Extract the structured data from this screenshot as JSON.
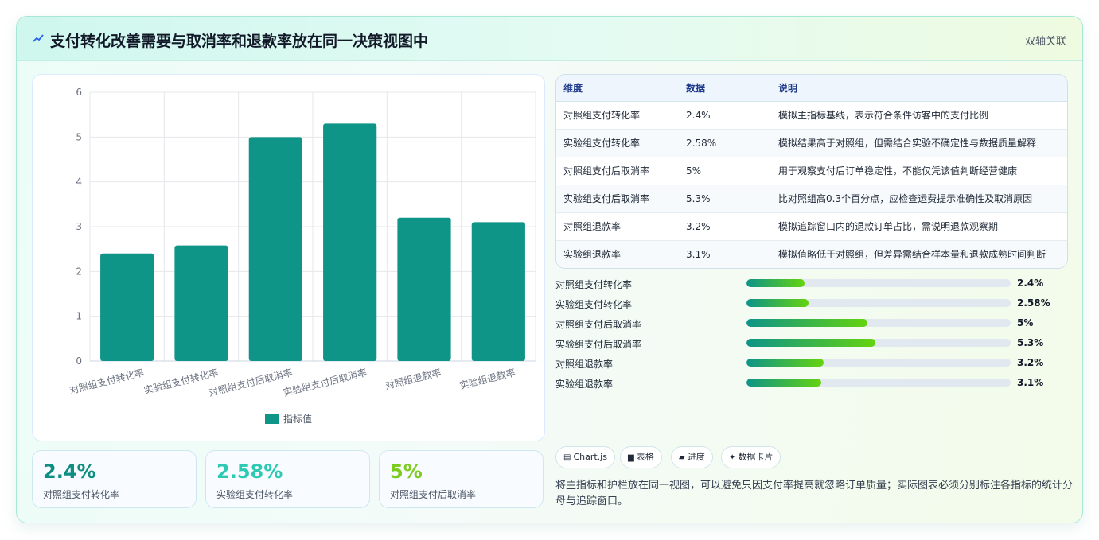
{
  "header": {
    "title": "支付转化改善需要与取消率和退款率放在同一决策视图中",
    "tag": "双轴关联",
    "icon": "trend-line-icon"
  },
  "chart_data": {
    "type": "bar",
    "categories": [
      "对照组支付转化率",
      "实验组支付转化率",
      "对照组支付后取消率",
      "实验组支付后取消率",
      "对照组退款率",
      "实验组退款率"
    ],
    "series": [
      {
        "name": "指标值",
        "values": [
          2.4,
          2.58,
          5,
          5.3,
          3.2,
          3.1
        ],
        "color": "#0f9488"
      }
    ],
    "ylim": [
      0,
      6
    ],
    "yticks": [
      "0",
      "1",
      "2",
      "3",
      "4",
      "5",
      "6"
    ],
    "grid": true,
    "legend": "bottom"
  },
  "metrics": [
    {
      "value": "2.4%",
      "label": "对照组支付转化率",
      "color": "#0f8f82"
    },
    {
      "value": "2.58%",
      "label": "实验组支付转化率",
      "color": "#2ec9b3"
    },
    {
      "value": "5%",
      "label": "对照组支付后取消率",
      "color": "#7ccc1d"
    }
  ],
  "table": {
    "headers": [
      "维度",
      "数据",
      "说明"
    ],
    "rows": [
      [
        "对照组支付转化率",
        "2.4%",
        "模拟主指标基线，表示符合条件访客中的支付比例"
      ],
      [
        "实验组支付转化率",
        "2.58%",
        "模拟结果高于对照组，但需结合实验不确定性与数据质量解释"
      ],
      [
        "对照组支付后取消率",
        "5%",
        "用于观察支付后订单稳定性，不能仅凭该值判断经营健康"
      ],
      [
        "实验组支付后取消率",
        "5.3%",
        "比对照组高0.3个百分点，应检查运费提示准确性及取消原因"
      ],
      [
        "对照组退款率",
        "3.2%",
        "模拟追踪窗口内的退款订单占比，需说明退款观察期"
      ],
      [
        "实验组退款率",
        "3.1%",
        "模拟值略低于对照组，但差异需结合样本量和退款成熟时间判断"
      ]
    ]
  },
  "progress": [
    {
      "label": "对照组支付转化率",
      "value": "2.4%",
      "fraction": 0.22
    },
    {
      "label": "实验组支付转化率",
      "value": "2.58%",
      "fraction": 0.236
    },
    {
      "label": "对照组支付后取消率",
      "value": "5%",
      "fraction": 0.458
    },
    {
      "label": "实验组支付后取消率",
      "value": "5.3%",
      "fraction": 0.488
    },
    {
      "label": "对照组退款率",
      "value": "3.2%",
      "fraction": 0.293
    },
    {
      "label": "实验组退款率",
      "value": "3.1%",
      "fraction": 0.284
    }
  ],
  "chips": [
    {
      "icon": "chart-icon",
      "glyph": "▤",
      "label": "Chart.js"
    },
    {
      "icon": "table-icon",
      "glyph": "▆",
      "label": "表格"
    },
    {
      "icon": "progress-icon",
      "glyph": "▰",
      "label": "进度"
    },
    {
      "icon": "sparkle-icon",
      "glyph": "✦",
      "label": "数据卡片"
    }
  ],
  "note": "将主指标和护栏放在同一视图，可以避免只因支付率提高就忽略订单质量；实际图表必须分别标注各指标的统计分母与追踪窗口。"
}
